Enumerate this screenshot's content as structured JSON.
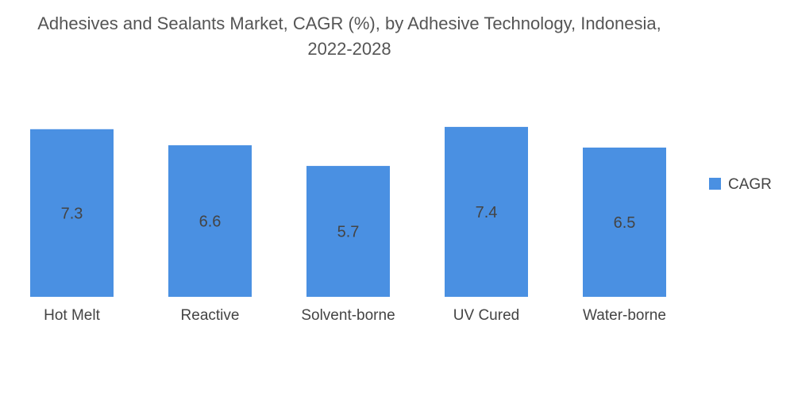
{
  "chart_data": {
    "type": "bar",
    "title_line1": "Adhesives and Sealants Market, CAGR (%), by Adhesive Technology, Indonesia,",
    "title_line2": "2022-2028",
    "categories": [
      "Hot Melt",
      "Reactive",
      "Solvent-borne",
      "UV Cured",
      "Water-borne"
    ],
    "series": [
      {
        "name": "CAGR",
        "values": [
          7.3,
          6.6,
          5.7,
          7.4,
          6.5
        ],
        "color": "#4a90e2"
      }
    ],
    "data_labels": [
      "7.3",
      "6.6",
      "5.7",
      "7.4",
      "6.5"
    ],
    "ylim": [
      0,
      7.5
    ],
    "grid": false,
    "legend_position": "right",
    "label_color": "#444444"
  }
}
